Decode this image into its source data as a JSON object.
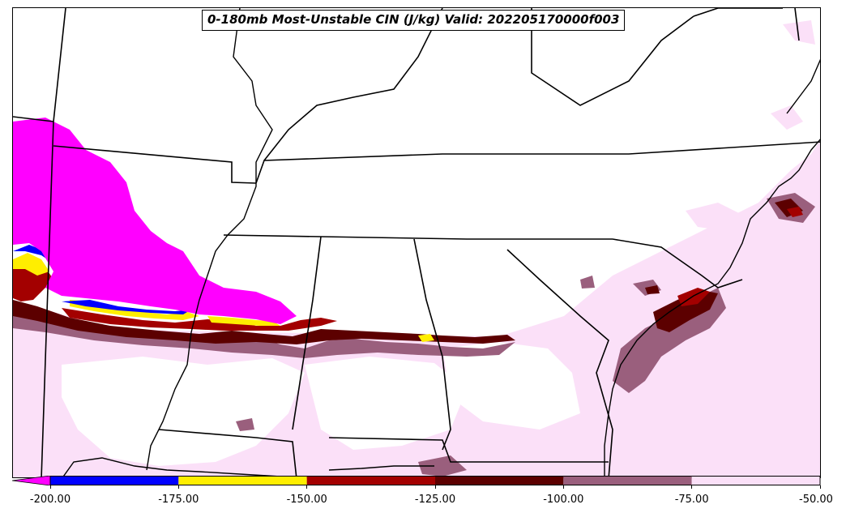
{
  "title": "0-180mb Most-Unstable CIN (J/kg) Valid: 202205170000f003",
  "colors": {
    "extend_low": "#ff00ff",
    "bin_-200_-175": "#0000ff",
    "bin_-175_-150": "#ffee00",
    "bin_-150_-125": "#a30000",
    "bin_-125_-100": "#5c0000",
    "bin_-100_-75": "#9a5f7d",
    "bin_-75_-50": "#fbe0f8",
    "boundaries": "#000000"
  },
  "colorbar": {
    "ticks": [
      "-200.00",
      "-175.00",
      "-150.00",
      "-125.00",
      "-100.00",
      "-75.00",
      "-50.00"
    ],
    "tick_values": [
      -200,
      -175,
      -150,
      -125,
      -100,
      -75,
      -50
    ],
    "bins": [
      {
        "from": -200,
        "to": -175,
        "color_key": "bin_-200_-175"
      },
      {
        "from": -175,
        "to": -150,
        "color_key": "bin_-175_-150"
      },
      {
        "from": -150,
        "to": -125,
        "color_key": "bin_-150_-125"
      },
      {
        "from": -125,
        "to": -100,
        "color_key": "bin_-125_-100"
      },
      {
        "from": -100,
        "to": -75,
        "color_key": "bin_-100_-75"
      },
      {
        "from": -75,
        "to": -50,
        "color_key": "bin_-75_-50"
      }
    ],
    "extend": "min"
  }
}
